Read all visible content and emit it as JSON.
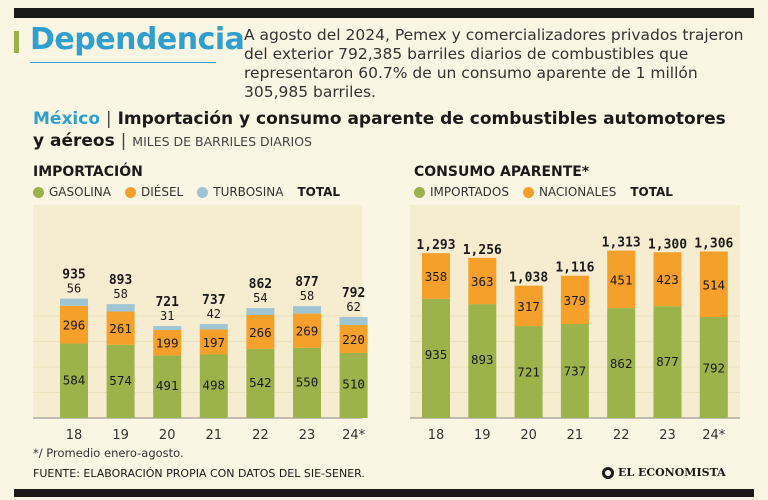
{
  "header": {
    "headline": "Dependencia",
    "intro": "A agosto del 2024, Pemex y comercializadores privados trajeron del exterior 792,385 barriles diarios de combustibles  que representaron 60.7% de un consumo aparente de 1 millón 305,985 barriles."
  },
  "title": {
    "country": "México",
    "separator": "|",
    "text": "Importación y consumo aparente de combustibles automotores y aéreos",
    "units_separator": "|",
    "units": "MILES DE BARRILES DIARIOS"
  },
  "colors": {
    "gasolina": "#9bb34a",
    "diesel": "#f5a02a",
    "turbosina": "#9fc4d4",
    "importados": "#9bb34a",
    "nacionales": "#f5a02a",
    "accent": "#2f9fcf"
  },
  "chart_data": [
    {
      "type": "bar",
      "stacked": true,
      "title": "IMPORTACIÓN",
      "categories": [
        "18",
        "19",
        "20",
        "21",
        "22",
        "23",
        "24*"
      ],
      "series": [
        {
          "name": "GASOLINA",
          "values": [
            584,
            574,
            491,
            498,
            542,
            550,
            510
          ]
        },
        {
          "name": "DIÉSEL",
          "values": [
            296,
            261,
            199,
            197,
            266,
            269,
            220
          ]
        },
        {
          "name": "TURBOSINA",
          "values": [
            56,
            58,
            31,
            42,
            54,
            58,
            62
          ]
        }
      ],
      "totals": [
        "935",
        "893",
        "721",
        "737",
        "862",
        "877",
        "792"
      ],
      "segment_labels": [
        [
          "584",
          "574",
          "491",
          "498",
          "542",
          "550",
          "510"
        ],
        [
          "296",
          "261",
          "199",
          "197",
          "266",
          "269",
          "220"
        ],
        [
          "56",
          "58",
          "31",
          "42",
          "54",
          "58",
          "62"
        ]
      ],
      "legend_total_label": "TOTAL",
      "ylim": [
        0,
        1400
      ]
    },
    {
      "type": "bar",
      "stacked": true,
      "title": "CONSUMO APARENTE*",
      "categories": [
        "18",
        "19",
        "20",
        "21",
        "22",
        "23",
        "24*"
      ],
      "series": [
        {
          "name": "IMPORTADOS",
          "values": [
            935,
            893,
            721,
            737,
            862,
            877,
            792
          ]
        },
        {
          "name": "NACIONALES",
          "values": [
            358,
            363,
            317,
            379,
            451,
            423,
            514
          ]
        }
      ],
      "totals": [
        "1,293",
        "1,256",
        "1,038",
        "1,116",
        "1,313",
        "1,300",
        "1,306"
      ],
      "segment_labels": [
        [
          "935",
          "893",
          "721",
          "737",
          "862",
          "877",
          "792"
        ],
        [
          "358",
          "363",
          "317",
          "379",
          "451",
          "423",
          "514"
        ]
      ],
      "legend_total_label": "TOTAL",
      "ylim": [
        0,
        1400
      ]
    }
  ],
  "footer": {
    "footnote": "*/ Promedio enero-agosto.",
    "source": "FUENTE: ELABORACIÓN PROPIA CON DATOS DEL SIE-SENER.",
    "brand": "EL ECONOMISTA"
  }
}
